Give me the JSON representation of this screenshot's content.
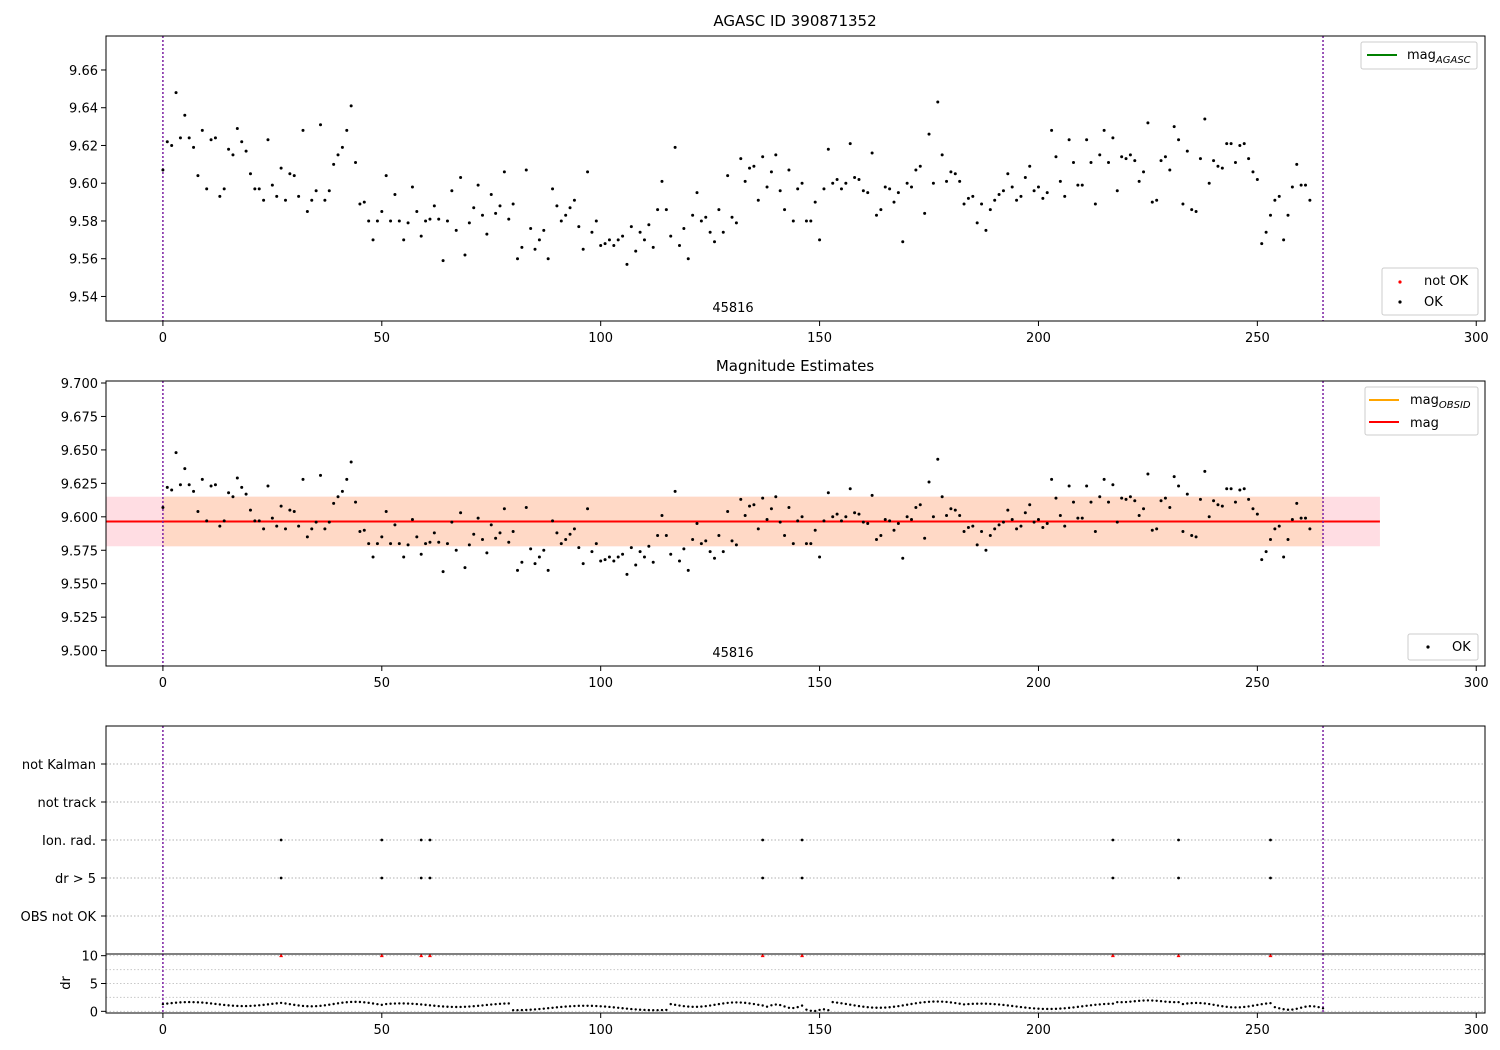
{
  "chart_data": [
    {
      "type": "scatter",
      "title": "AGASC ID 390871352",
      "annotation": "45816",
      "xlim": [
        -13,
        302
      ],
      "ylim": [
        9.527,
        9.678
      ],
      "xticks": [
        "0",
        "50",
        "100",
        "150",
        "200",
        "250",
        "300"
      ],
      "yticks": [
        "9.54",
        "9.56",
        "9.58",
        "9.60",
        "9.62",
        "9.64",
        "9.66"
      ],
      "vlines_x": [
        0,
        265
      ],
      "vline_color": "#7b1fa2",
      "legends": {
        "upper": [
          {
            "label_main": "mag",
            "label_sub": "AGASC",
            "color": "#008000",
            "kind": "line"
          }
        ],
        "lower": [
          {
            "label": "not OK",
            "color": "#ff0000",
            "kind": "dot"
          },
          {
            "label": "OK",
            "color": "#000000",
            "kind": "dot"
          }
        ]
      },
      "series": [
        {
          "name": "OK",
          "color": "#000000",
          "y": [
            9.607,
            9.622,
            9.62,
            9.648,
            9.624,
            9.636,
            9.624,
            9.619,
            9.604,
            9.628,
            9.597,
            9.623,
            9.624,
            9.593,
            9.597,
            9.618,
            9.615,
            9.629,
            9.622,
            9.617,
            9.605,
            9.597,
            9.597,
            9.591,
            9.623,
            9.599,
            9.593,
            9.608,
            9.591,
            9.605,
            9.604,
            9.593,
            9.628,
            9.585,
            9.591,
            9.596,
            9.631,
            9.591,
            9.596,
            9.61,
            9.615,
            9.619,
            9.628,
            9.641,
            9.611,
            9.589,
            9.59,
            9.58,
            9.57,
            9.58,
            9.585,
            9.604,
            9.58,
            9.594,
            9.58,
            9.57,
            9.579,
            9.598,
            9.585,
            9.572,
            9.58,
            9.581,
            9.588,
            9.581,
            9.559,
            9.58,
            9.596,
            9.575,
            9.603,
            9.562,
            9.579,
            9.587,
            9.599,
            9.583,
            9.573,
            9.594,
            9.584,
            9.588,
            9.606,
            9.581,
            9.589,
            9.56,
            9.566,
            9.607,
            9.576,
            9.565,
            9.57,
            9.575,
            9.56,
            9.597,
            9.588,
            9.58,
            9.583,
            9.587,
            9.591,
            9.577,
            9.565,
            9.606,
            9.574,
            9.58,
            9.567,
            9.568,
            9.57,
            9.567,
            9.57,
            9.572,
            9.557,
            9.577,
            9.564,
            9.574,
            9.57,
            9.578,
            9.566,
            9.586,
            9.601,
            9.586,
            9.572,
            9.619,
            9.567,
            9.576,
            9.56,
            9.583,
            9.595,
            9.58,
            9.582,
            9.574,
            9.569,
            9.586,
            9.574,
            9.604,
            9.582,
            9.579,
            9.613,
            9.601,
            9.608,
            9.609,
            9.591,
            9.614,
            9.598,
            9.606,
            9.615,
            9.596,
            9.586,
            9.607,
            9.58,
            9.597,
            9.6,
            9.58,
            9.58,
            9.59,
            9.57,
            9.597,
            9.618,
            9.6,
            9.602,
            9.597,
            9.6,
            9.621,
            9.603,
            9.602,
            9.596,
            9.595,
            9.616,
            9.583,
            9.586,
            9.598,
            9.597,
            9.59,
            9.595,
            9.569,
            9.6,
            9.598,
            9.607,
            9.609,
            9.584,
            9.626,
            9.6,
            9.643,
            9.615,
            9.601,
            9.606,
            9.605,
            9.601,
            9.589,
            9.592,
            9.593,
            9.579,
            9.589,
            9.575,
            9.586,
            9.591,
            9.594,
            9.596,
            9.605,
            9.598,
            9.591,
            9.593,
            9.603,
            9.609,
            9.596,
            9.598,
            9.592,
            9.595,
            9.628,
            9.614,
            9.601,
            9.593,
            9.623,
            9.611,
            9.599,
            9.599,
            9.623,
            9.611,
            9.589,
            9.615,
            9.628,
            9.611,
            9.624,
            9.596,
            9.614,
            9.613,
            9.615,
            9.612,
            9.601,
            9.606,
            9.632,
            9.59,
            9.591,
            9.612,
            9.614,
            9.607,
            9.63,
            9.623,
            9.589,
            9.617,
            9.586,
            9.585,
            9.613,
            9.634,
            9.6,
            9.612,
            9.609,
            9.608,
            9.621,
            9.621,
            9.611,
            9.62,
            9.621,
            9.613,
            9.606,
            9.602,
            9.568,
            9.574,
            9.583,
            9.591,
            9.593,
            9.57,
            9.583,
            9.598,
            9.61,
            9.599,
            9.599,
            9.591
          ]
        }
      ]
    },
    {
      "type": "scatter",
      "title": "Magnitude Estimates",
      "annotation": "45816",
      "xlim": [
        -13,
        302
      ],
      "ylim": [
        9.4885,
        9.7015
      ],
      "xticks": [
        "0",
        "50",
        "100",
        "150",
        "200",
        "250",
        "300"
      ],
      "yticks": [
        "9.500",
        "9.525",
        "9.550",
        "9.575",
        "9.600",
        "9.625",
        "9.650",
        "9.675",
        "9.700"
      ],
      "vlines_x": [
        0,
        265
      ],
      "mag": 9.5965,
      "band_outer": {
        "x": [
          -13,
          278
        ],
        "y": [
          9.578,
          9.615
        ],
        "color": "#ffdde3"
      },
      "band_inner": {
        "x": [
          0,
          265
        ],
        "y": [
          9.578,
          9.615
        ],
        "color": "#ffd9c6"
      },
      "legends": {
        "upper": [
          {
            "label_main": "mag",
            "label_sub": "OBSID",
            "color": "#ffa500",
            "kind": "line"
          },
          {
            "label": "mag",
            "color": "#ff0000",
            "kind": "line"
          }
        ],
        "lower": [
          {
            "label": "OK",
            "color": "#000000",
            "kind": "dot"
          }
        ]
      },
      "series": [
        {
          "name": "OK",
          "color": "#000000",
          "same_as_panel": 0
        }
      ]
    },
    {
      "type": "scatter",
      "categories": [
        "OBS not OK",
        "dr > 5",
        "Ion. rad.",
        "not track",
        "not Kalman"
      ],
      "xlim": [
        -13,
        302
      ],
      "vlines_x": [
        0,
        265
      ],
      "flag_x": [
        27,
        50,
        59,
        61,
        137,
        146,
        217,
        232,
        253
      ],
      "flags": {
        "dr > 5": [
          27,
          50,
          59,
          61,
          137,
          146,
          217,
          232,
          253
        ],
        "Ion. rad.": [
          27,
          50,
          59,
          61,
          137,
          146,
          217,
          232,
          253
        ],
        "not track": [],
        "not Kalman": [],
        "OBS not OK": []
      }
    },
    {
      "type": "scatter",
      "ylabel": "dr",
      "xlim": [
        -13,
        302
      ],
      "ylim": [
        -0.3,
        10.3
      ],
      "xticks": [
        "0",
        "50",
        "100",
        "150",
        "200",
        "250",
        "300"
      ],
      "yticks": [
        "0",
        "5",
        "10"
      ],
      "vlines_x": [
        0,
        265
      ],
      "clip_marker": {
        "y": 10,
        "color": "#ff0000",
        "x": [
          27,
          50,
          59,
          61,
          137,
          146,
          217,
          232,
          253
        ]
      },
      "series": [
        {
          "name": "dr",
          "color": "#000000",
          "segments": [
            {
              "x0": 0,
              "x1": 27,
              "base": 1.3,
              "amp": 0.45
            },
            {
              "x0": 28,
              "x1": 50,
              "base": 1.3,
              "amp": 0.5
            },
            {
              "x0": 51,
              "x1": 79,
              "base": 1.1,
              "amp": 0.4
            },
            {
              "x0": 80,
              "x1": 115,
              "base": 0.6,
              "amp": 0.5
            },
            {
              "x0": 116,
              "x1": 137,
              "base": 1.2,
              "amp": 0.5
            },
            {
              "x0": 138,
              "x1": 146,
              "base": 0.9,
              "amp": 0.4
            },
            {
              "x0": 147,
              "x1": 152,
              "base": 0.2,
              "amp": 0.2
            },
            {
              "x0": 153,
              "x1": 182,
              "base": 1.2,
              "amp": 0.7
            },
            {
              "x0": 183,
              "x1": 217,
              "base": 0.9,
              "amp": 0.6
            },
            {
              "x0": 218,
              "x1": 232,
              "base": 1.8,
              "amp": 0.2
            },
            {
              "x0": 233,
              "x1": 253,
              "base": 1.1,
              "amp": 0.5
            },
            {
              "x0": 254,
              "x1": 265,
              "base": 0.6,
              "amp": 0.4
            }
          ]
        }
      ]
    }
  ]
}
